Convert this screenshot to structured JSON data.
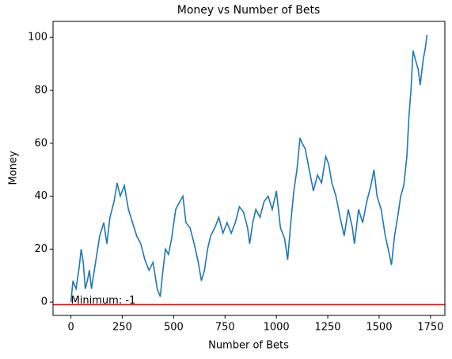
{
  "chart_data": {
    "type": "line",
    "title": "Money vs Number of Bets",
    "x_label": "Number of Bets",
    "y_label": "Money",
    "x": [
      0,
      10,
      25,
      40,
      50,
      60,
      70,
      80,
      90,
      100,
      110,
      120,
      140,
      160,
      175,
      190,
      210,
      225,
      240,
      260,
      280,
      300,
      320,
      340,
      360,
      380,
      400,
      420,
      435,
      445,
      460,
      475,
      490,
      510,
      530,
      545,
      560,
      580,
      600,
      620,
      635,
      650,
      665,
      680,
      700,
      720,
      740,
      760,
      780,
      800,
      820,
      840,
      860,
      870,
      885,
      900,
      920,
      940,
      960,
      980,
      1000,
      1020,
      1040,
      1055,
      1070,
      1085,
      1100,
      1115,
      1125,
      1140,
      1160,
      1180,
      1200,
      1220,
      1240,
      1255,
      1270,
      1290,
      1310,
      1330,
      1350,
      1370,
      1380,
      1400,
      1420,
      1440,
      1460,
      1475,
      1490,
      1510,
      1530,
      1550,
      1560,
      1575,
      1590,
      1605,
      1620,
      1635,
      1645,
      1655,
      1665,
      1675,
      1690,
      1700,
      1715,
      1725,
      1733
    ],
    "series": [
      {
        "name": "Money",
        "color": "#1f77b4",
        "values": [
          0,
          8,
          5,
          13,
          20,
          15,
          5,
          8,
          12,
          5,
          10,
          15,
          25,
          30,
          22,
          32,
          38,
          45,
          40,
          44,
          35,
          30,
          25,
          22,
          16,
          12,
          15,
          5,
          2,
          10,
          20,
          18,
          24,
          35,
          38,
          40,
          30,
          28,
          22,
          15,
          8,
          12,
          20,
          25,
          28,
          32,
          26,
          30,
          26,
          30,
          36,
          34,
          28,
          22,
          30,
          35,
          32,
          38,
          40,
          35,
          42,
          28,
          24,
          16,
          30,
          42,
          50,
          62,
          60,
          58,
          50,
          42,
          48,
          45,
          55,
          52,
          45,
          40,
          32,
          25,
          35,
          28,
          22,
          35,
          30,
          38,
          44,
          50,
          40,
          35,
          25,
          18,
          14,
          25,
          32,
          40,
          44,
          55,
          70,
          80,
          95,
          92,
          88,
          82,
          92,
          96,
          101
        ]
      }
    ],
    "hline": {
      "value": -1,
      "color": "#ff0000",
      "annotation": "Minimum: -1"
    },
    "xlim": [
      -87,
      1820
    ],
    "ylim": [
      -5.05,
      106.05
    ],
    "xticks": [
      0,
      250,
      500,
      750,
      1000,
      1250,
      1500,
      1750
    ],
    "yticks": [
      0,
      20,
      40,
      60,
      80,
      100
    ]
  }
}
